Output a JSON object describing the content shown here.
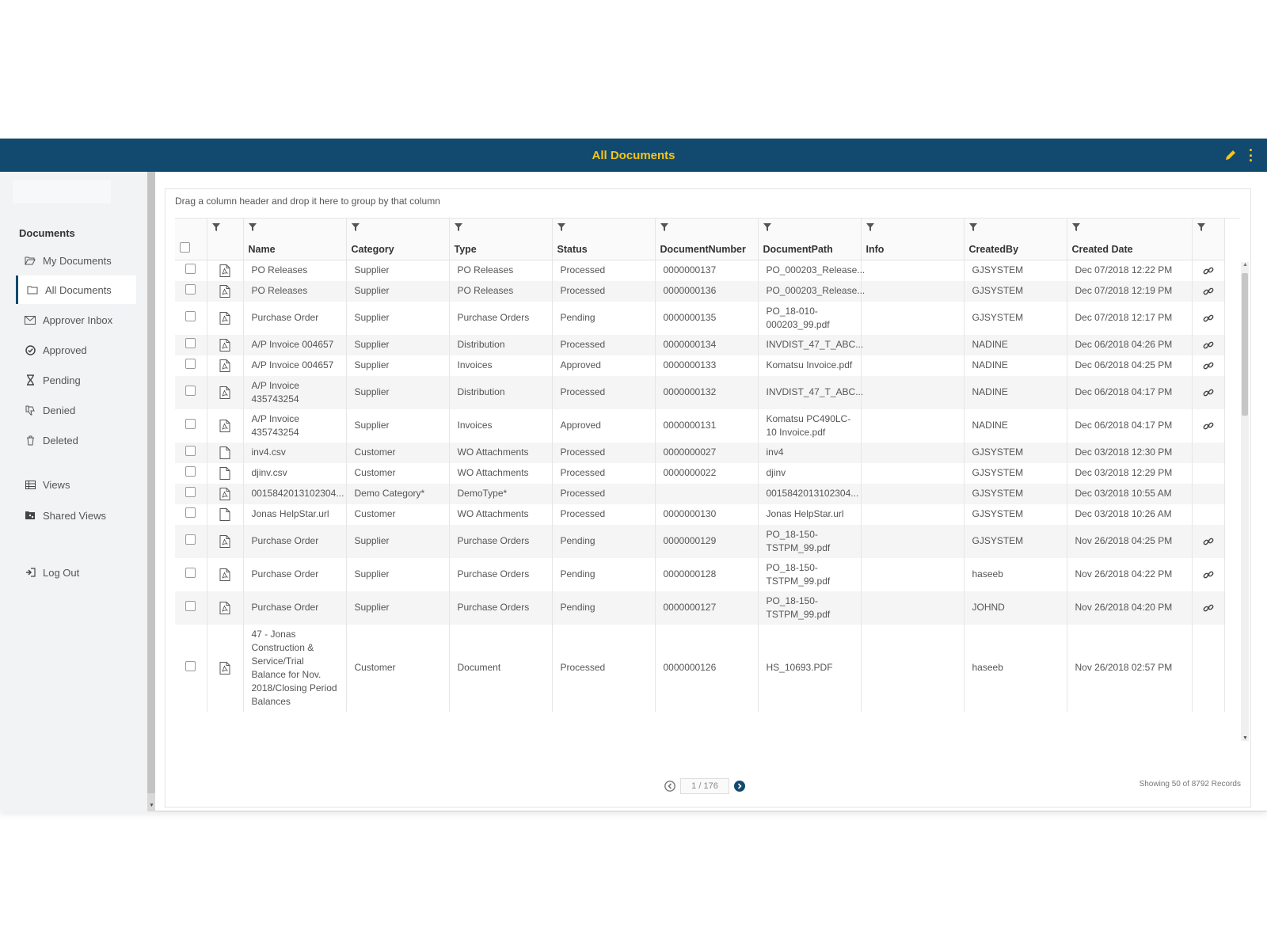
{
  "header": {
    "title": "All Documents"
  },
  "sidebar": {
    "heading": "Documents",
    "items": [
      {
        "label": "My Documents",
        "icon": "folder-open-icon"
      },
      {
        "label": "All Documents",
        "icon": "folder-icon",
        "active": true
      },
      {
        "label": "Approver Inbox",
        "icon": "envelope-icon"
      },
      {
        "label": "Approved",
        "icon": "check-circle-icon"
      },
      {
        "label": "Pending",
        "icon": "hourglass-icon"
      },
      {
        "label": "Denied",
        "icon": "thumbs-down-icon"
      },
      {
        "label": "Deleted",
        "icon": "trash-icon"
      },
      {
        "label": "Views",
        "icon": "table-icon"
      },
      {
        "label": "Shared Views",
        "icon": "shared-folder-icon"
      },
      {
        "label": "Log Out",
        "icon": "logout-icon"
      }
    ]
  },
  "grid": {
    "group_hint": "Drag a column header and drop it here to group by that column",
    "columns": [
      "Name",
      "Category",
      "Type",
      "Status",
      "DocumentNumber",
      "DocumentPath",
      "Info",
      "CreatedBy",
      "Created Date"
    ],
    "rows": [
      {
        "icon": "pdf",
        "name": "PO Releases",
        "category": "Supplier",
        "type": "PO Releases",
        "status": "Processed",
        "number": "0000000137",
        "path": "PO_000203_Release...",
        "info": "",
        "created_by": "GJSYSTEM",
        "date": "Dec 07/2018 12:22 PM",
        "link": true
      },
      {
        "icon": "pdf",
        "name": "PO Releases",
        "category": "Supplier",
        "type": "PO Releases",
        "status": "Processed",
        "number": "0000000136",
        "path": "PO_000203_Release...",
        "info": "",
        "created_by": "GJSYSTEM",
        "date": "Dec 07/2018 12:19 PM",
        "link": true
      },
      {
        "icon": "pdf",
        "name": "Purchase Order",
        "category": "Supplier",
        "type": "Purchase Orders",
        "status": "Pending",
        "number": "0000000135",
        "path": "PO_18-010-000203_99.pdf",
        "info": "",
        "created_by": "GJSYSTEM",
        "date": "Dec 07/2018 12:17 PM",
        "link": true
      },
      {
        "icon": "pdf",
        "name": "A/P Invoice 004657",
        "category": "Supplier",
        "type": "Distribution",
        "status": "Processed",
        "number": "0000000134",
        "path": "INVDIST_47_T_ABC...",
        "info": "",
        "created_by": "NADINE",
        "date": "Dec 06/2018 04:26 PM",
        "link": true
      },
      {
        "icon": "pdf",
        "name": "A/P Invoice 004657",
        "category": "Supplier",
        "type": "Invoices",
        "status": "Approved",
        "number": "0000000133",
        "path": "Komatsu Invoice.pdf",
        "info": "",
        "created_by": "NADINE",
        "date": "Dec 06/2018 04:25 PM",
        "link": true
      },
      {
        "icon": "pdf",
        "name": "A/P Invoice 435743254",
        "category": "Supplier",
        "type": "Distribution",
        "status": "Processed",
        "number": "0000000132",
        "path": "INVDIST_47_T_ABC...",
        "info": "",
        "created_by": "NADINE",
        "date": "Dec 06/2018 04:17 PM",
        "link": true
      },
      {
        "icon": "pdf",
        "name": "A/P Invoice 435743254",
        "category": "Supplier",
        "type": "Invoices",
        "status": "Approved",
        "number": "0000000131",
        "path": "Komatsu PC490LC-10 Invoice.pdf",
        "info": "",
        "created_by": "NADINE",
        "date": "Dec 06/2018 04:17 PM",
        "link": true
      },
      {
        "icon": "file",
        "name": "inv4.csv",
        "category": "Customer",
        "type": "WO Attachments",
        "status": "Processed",
        "number": "0000000027",
        "path": "inv4",
        "info": "",
        "created_by": "GJSYSTEM",
        "date": "Dec 03/2018 12:30 PM",
        "link": false
      },
      {
        "icon": "file",
        "name": "djinv.csv",
        "category": "Customer",
        "type": "WO Attachments",
        "status": "Processed",
        "number": "0000000022",
        "path": "djinv",
        "info": "",
        "created_by": "GJSYSTEM",
        "date": "Dec 03/2018 12:29 PM",
        "link": false
      },
      {
        "icon": "pdf",
        "name": "0015842013102304...",
        "category": "Demo Category*",
        "type": "DemoType*",
        "status": "Processed",
        "number": "",
        "path": "0015842013102304...",
        "info": "",
        "created_by": "GJSYSTEM",
        "date": "Dec 03/2018 10:55 AM",
        "link": false
      },
      {
        "icon": "file",
        "name": "Jonas HelpStar.url",
        "category": "Customer",
        "type": "WO Attachments",
        "status": "Processed",
        "number": "0000000130",
        "path": "Jonas HelpStar.url",
        "info": "",
        "created_by": "GJSYSTEM",
        "date": "Dec 03/2018 10:26 AM",
        "link": false
      },
      {
        "icon": "pdf",
        "name": "Purchase Order",
        "category": "Supplier",
        "type": "Purchase Orders",
        "status": "Pending",
        "number": "0000000129",
        "path": "PO_18-150-TSTPM_99.pdf",
        "info": "",
        "created_by": "GJSYSTEM",
        "date": "Nov 26/2018 04:25 PM",
        "link": true
      },
      {
        "icon": "pdf",
        "name": "Purchase Order",
        "category": "Supplier",
        "type": "Purchase Orders",
        "status": "Pending",
        "number": "0000000128",
        "path": "PO_18-150-TSTPM_99.pdf",
        "info": "",
        "created_by": "haseeb",
        "date": "Nov 26/2018 04:22 PM",
        "link": true
      },
      {
        "icon": "pdf",
        "name": "Purchase Order",
        "category": "Supplier",
        "type": "Purchase Orders",
        "status": "Pending",
        "number": "0000000127",
        "path": "PO_18-150-TSTPM_99.pdf",
        "info": "",
        "created_by": "JOHND",
        "date": "Nov 26/2018 04:20 PM",
        "link": true
      },
      {
        "icon": "pdf",
        "name": "47 - Jonas Construction & Service/Trial Balance for Nov. 2018/Closing Period Balances",
        "category": "Customer",
        "type": "Document",
        "status": "Processed",
        "number": "0000000126",
        "path": "HS_10693.PDF",
        "info": "",
        "created_by": "haseeb",
        "date": "Nov 26/2018 02:57 PM",
        "link": false
      }
    ]
  },
  "pager": {
    "page_display": "1 / 176",
    "records_text": "Showing 50 of 8792 Records"
  },
  "colors": {
    "header_bg": "#12496e",
    "title": "#f5c518",
    "sidebar_bg": "#f1f3f5"
  }
}
